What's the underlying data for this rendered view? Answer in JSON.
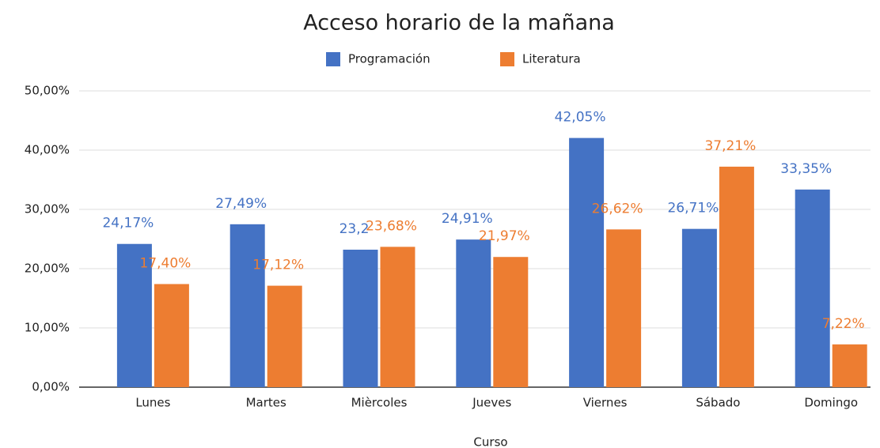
{
  "chart_data": {
    "type": "bar",
    "title": "Acceso horario de la mañana",
    "x_label": "Curso",
    "categories": [
      "Lunes",
      "Martes",
      "Mièrcoles",
      "Jueves",
      "Viernes",
      "Sábado",
      "Domingo"
    ],
    "series": [
      {
        "name": "Programación",
        "color": "#4472c4",
        "values": [
          24.17,
          27.49,
          23.2,
          24.91,
          42.05,
          26.71,
          33.35
        ],
        "value_labels": [
          "24,17%",
          "27,49%",
          "23,2",
          "24,91%",
          "42,05%",
          "26,71%",
          "33,35%"
        ]
      },
      {
        "name": "Literatura",
        "color": "#ed7d31",
        "values": [
          17.4,
          17.12,
          23.68,
          21.97,
          26.62,
          37.21,
          7.22
        ],
        "value_labels": [
          "17,40%",
          "17,12%",
          "23,68%",
          "21,97%",
          "26,62%",
          "37,21%",
          "7,22%"
        ]
      }
    ],
    "ylim": [
      0,
      50
    ],
    "yticks": [
      {
        "value": 0,
        "label": "0,00%"
      },
      {
        "value": 10,
        "label": "10,00%"
      },
      {
        "value": 20,
        "label": "20,00%"
      },
      {
        "value": 30,
        "label": "30,00%"
      },
      {
        "value": 40,
        "label": "40,00%"
      },
      {
        "value": 50,
        "label": "50,00%"
      }
    ],
    "grid": true,
    "legend": "top"
  }
}
